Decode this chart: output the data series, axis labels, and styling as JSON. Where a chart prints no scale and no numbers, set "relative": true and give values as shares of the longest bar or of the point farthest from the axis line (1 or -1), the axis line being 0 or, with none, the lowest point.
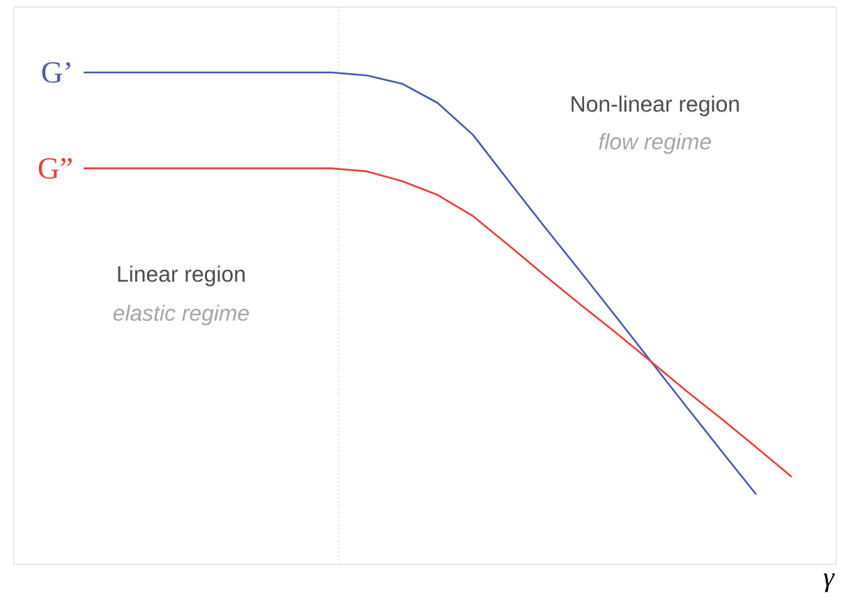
{
  "chart_data": {
    "type": "line",
    "relative": true,
    "xlabel": "γ",
    "categories": [
      null,
      null,
      null,
      null,
      null,
      null,
      null,
      null,
      null,
      null,
      null,
      null,
      null,
      null,
      null,
      null,
      null,
      null,
      null,
      null,
      null
    ],
    "series": [
      {
        "name": "G’",
        "color": "#4a5cb0",
        "values": [
          1,
          1,
          1,
          1,
          1,
          1,
          1,
          1,
          0.994,
          0.977,
          0.938,
          0.873,
          0.78,
          0.688,
          0.598,
          0.507,
          0.415,
          0.323,
          0.232,
          0.142,
          null
        ]
      },
      {
        "name": "G”",
        "color": "#e8413c",
        "values": [
          0.805,
          0.805,
          0.805,
          0.805,
          0.805,
          0.805,
          0.805,
          0.805,
          0.799,
          0.779,
          0.751,
          0.708,
          0.649,
          0.589,
          0.53,
          0.473,
          0.414,
          0.354,
          0.297,
          0.238,
          0.178
        ]
      }
    ],
    "annotations": [
      "Linear region",
      "elastic regime",
      "Non-linear region",
      "flow regime"
    ],
    "legend": false,
    "marker": "none",
    "line_style": "solid"
  }
}
